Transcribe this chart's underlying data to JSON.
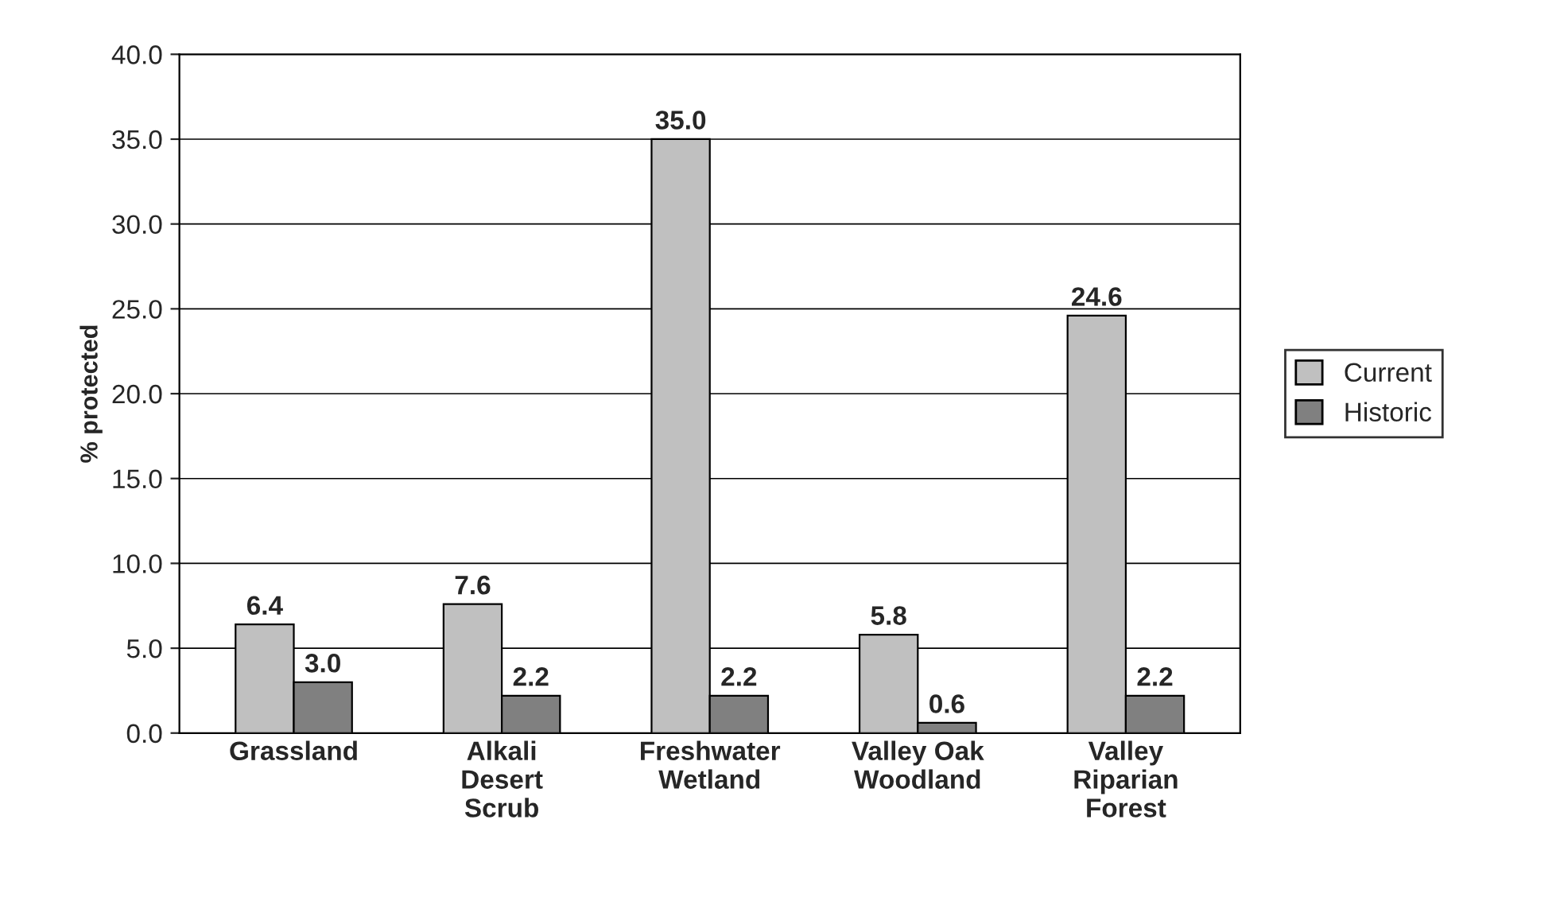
{
  "chart_data": {
    "type": "bar",
    "ylabel": "% protected",
    "categories": [
      "Grassland",
      "Alkali\nDesert\nScrub",
      "Freshwater\nWetland",
      "Valley Oak\nWoodland",
      "Valley\nRiparian\nForest"
    ],
    "series": [
      {
        "name": "Current",
        "color": "#c0c0c0",
        "values": [
          6.4,
          7.6,
          35.0,
          5.8,
          24.6
        ],
        "value_labels": [
          "6.4",
          "7.6",
          "35.0",
          "5.8",
          "24.6"
        ]
      },
      {
        "name": "Historic",
        "color": "#808080",
        "values": [
          3.0,
          2.2,
          2.2,
          0.6,
          2.2
        ],
        "value_labels": [
          "3.0",
          "2.2",
          "2.2",
          "0.6",
          "2.2"
        ]
      }
    ],
    "ylim": [
      0,
      40
    ],
    "yticks": [
      {
        "value": 0,
        "label": "0.0"
      },
      {
        "value": 5,
        "label": "5.0"
      },
      {
        "value": 10,
        "label": "10.0"
      },
      {
        "value": 15,
        "label": "15.0"
      },
      {
        "value": 20,
        "label": "20.0"
      },
      {
        "value": 25,
        "label": "25.0"
      },
      {
        "value": 30,
        "label": "30.0"
      },
      {
        "value": 35,
        "label": "35.0"
      },
      {
        "value": 40,
        "label": "40.0"
      }
    ],
    "grid": "y",
    "legend": "right"
  }
}
